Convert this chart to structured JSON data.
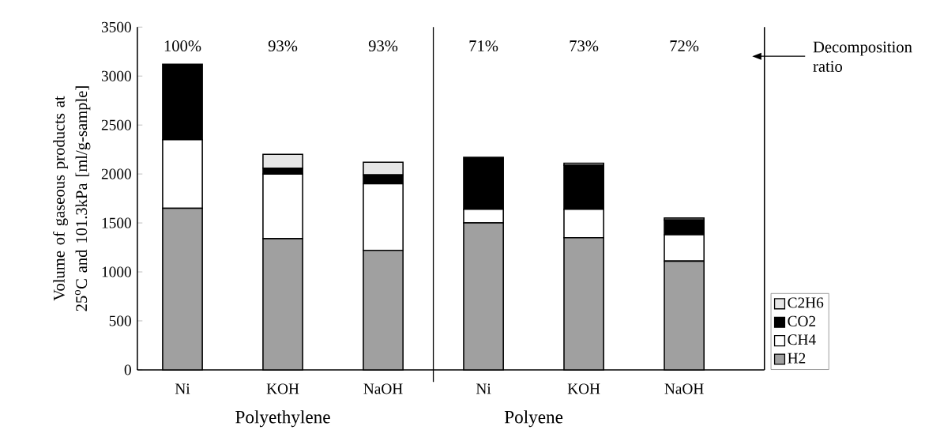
{
  "chart_data": {
    "type": "bar",
    "stacked": true,
    "ylabel": "Volume of gaseous products at 25$^{o}$C and 101.3kPa [ml/g-sample]",
    "categories": [
      "Ni",
      "KOH",
      "NaOH",
      "Ni",
      "KOH",
      "NaOH"
    ],
    "series": [
      {
        "name": "H2",
        "color": "#a0a0a0",
        "values": [
          1650,
          1340,
          1220,
          1500,
          1350,
          1110
        ]
      },
      {
        "name": "CH4",
        "color": "#ffffff",
        "values": [
          700,
          660,
          680,
          140,
          290,
          270
        ]
      },
      {
        "name": "CO2",
        "color": "#000000",
        "values": [
          770,
          60,
          90,
          530,
          450,
          150
        ]
      },
      {
        "name": "C2H6",
        "color": "#e6e6e6",
        "values": [
          0,
          140,
          130,
          0,
          20,
          20
        ]
      }
    ],
    "ylim": [
      0,
      3500
    ],
    "yticks": [
      0,
      500,
      1000,
      1500,
      2000,
      2500,
      3000,
      3500
    ],
    "annotations": [
      "100%",
      "93%",
      "93%",
      "71%",
      "73%",
      "72%",
      "Decomposition ratio",
      "Polyethylene",
      "Polyene"
    ],
    "legend": "right",
    "grid": false
  }
}
